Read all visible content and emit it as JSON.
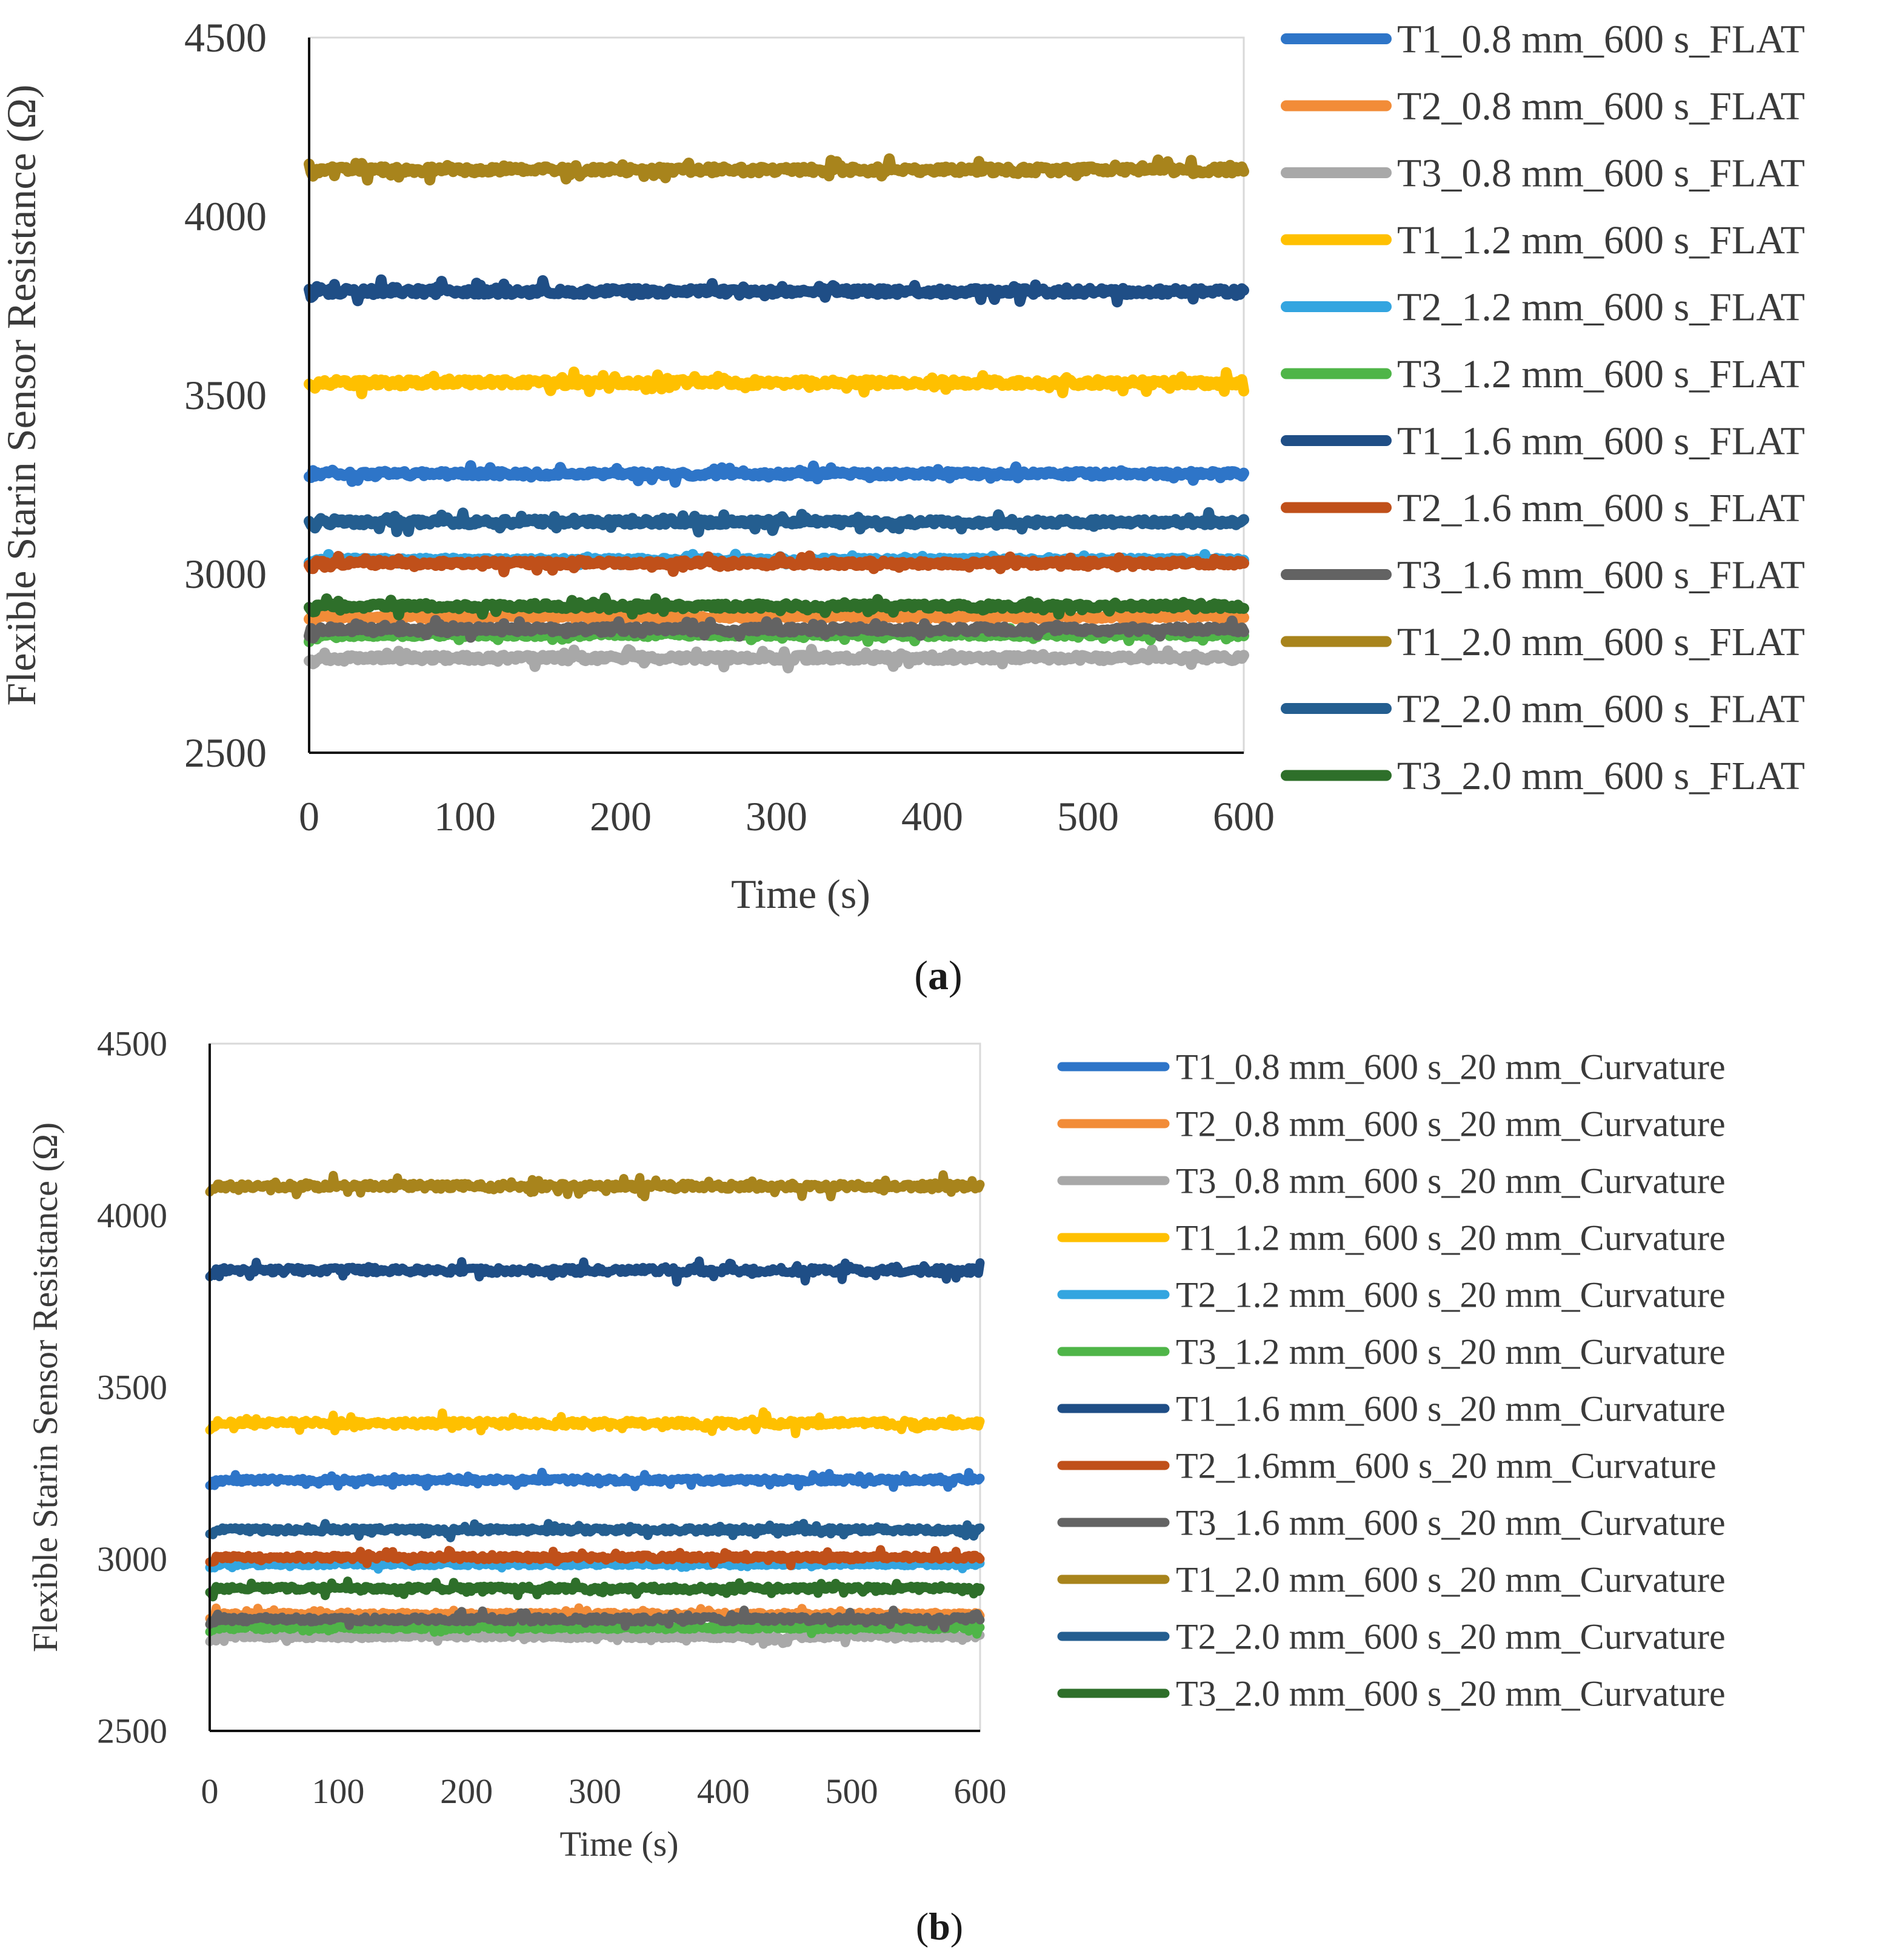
{
  "chart_data": [
    {
      "type": "line",
      "panel_label": "a",
      "title": "",
      "xlabel": "Time (s)",
      "ylabel": "Flexible Starin Sensor Resistance (Ω)",
      "xlim": [
        0,
        600
      ],
      "ylim": [
        2500,
        4500
      ],
      "xticks": [
        "0",
        "100",
        "200",
        "300",
        "400",
        "500",
        "600"
      ],
      "yticks": [
        "2500",
        "3000",
        "3500",
        "4000",
        "4500"
      ],
      "grid": false,
      "legend_position": "right",
      "series": [
        {
          "name": "T1_0.8 mm_600 s_FLAT",
          "color": "#2E75C8",
          "level": 3280,
          "noise": 12
        },
        {
          "name": "T2_0.8 mm_600 s_FLAT",
          "color": "#F28C38",
          "level": 2880,
          "noise": 10
        },
        {
          "name": "T3_0.8 mm_600 s_FLAT",
          "color": "#A8A8A8",
          "level": 2765,
          "noise": 14
        },
        {
          "name": "T1_1.2 mm_600 s_FLAT",
          "color": "#FFC000",
          "level": 3535,
          "noise": 16
        },
        {
          "name": "T2_1.2 mm_600 s_FLAT",
          "color": "#33A5E0",
          "level": 3040,
          "noise": 8
        },
        {
          "name": "T3_1.2 mm_600 s_FLAT",
          "color": "#4FB548",
          "level": 2830,
          "noise": 10
        },
        {
          "name": "T1_1.6 mm_600 s_FLAT",
          "color": "#1F4E86",
          "level": 3790,
          "noise": 16
        },
        {
          "name": "T2_1.6 mm_600 s_FLAT",
          "color": "#C0501A",
          "level": 3030,
          "noise": 12
        },
        {
          "name": "T3_1.6 mm_600 s_FLAT",
          "color": "#636363",
          "level": 2845,
          "noise": 14
        },
        {
          "name": "T1_2.0 mm_600 s_FLAT",
          "color": "#A8841C",
          "level": 4130,
          "noise": 16
        },
        {
          "name": "T2_2.0 mm_600 s_FLAT",
          "color": "#245E90",
          "level": 3145,
          "noise": 14
        },
        {
          "name": "T3_2.0 mm_600 s_FLAT",
          "color": "#2E6F2A",
          "level": 2910,
          "noise": 12
        }
      ]
    },
    {
      "type": "line",
      "panel_label": "b",
      "title": "",
      "xlabel": "Time (s)",
      "ylabel": "Flexible Starin Sensor Resistance (Ω)",
      "xlim": [
        0,
        600
      ],
      "ylim": [
        2500,
        4500
      ],
      "xticks": [
        "0",
        "100",
        "200",
        "300",
        "400",
        "500",
        "600"
      ],
      "yticks": [
        "2500",
        "3000",
        "3500",
        "4000",
        "4500"
      ],
      "grid": false,
      "legend_position": "right",
      "series": [
        {
          "name": "T1_0.8 mm_600 s_20 mm_Curvature",
          "color": "#2E75C8",
          "level": 3230,
          "noise": 12
        },
        {
          "name": "T2_0.8 mm_600 s_20 mm_Curvature",
          "color": "#F28C38",
          "level": 2840,
          "noise": 10
        },
        {
          "name": "T3_0.8 mm_600 s_20 mm_Curvature",
          "color": "#A8A8A8",
          "level": 2775,
          "noise": 12
        },
        {
          "name": "T1_1.2 mm_600 s_20 mm_Curvature",
          "color": "#FFC000",
          "level": 3395,
          "noise": 16
        },
        {
          "name": "T2_1.2 mm_600 s_20 mm_Curvature",
          "color": "#33A5E0",
          "level": 2985,
          "noise": 8
        },
        {
          "name": "T3_1.2 mm_600 s_20 mm_Curvature",
          "color": "#4FB548",
          "level": 2800,
          "noise": 10
        },
        {
          "name": "T1_1.6 mm_600 s_20 mm_Curvature",
          "color": "#1F4E86",
          "level": 3840,
          "noise": 16
        },
        {
          "name": "T2_1.6mm_600 s_20 mm_Curvature",
          "color": "#C0501A",
          "level": 3005,
          "noise": 12
        },
        {
          "name": "T3_1.6 mm_600 s_20 mm_Curvature",
          "color": "#636363",
          "level": 2825,
          "noise": 14
        },
        {
          "name": "T1_2.0 mm_600 s_20 mm_Curvature",
          "color": "#A8841C",
          "level": 4085,
          "noise": 16
        },
        {
          "name": "T2_2.0 mm_600 s_20 mm_Curvature",
          "color": "#245E90",
          "level": 3085,
          "noise": 12
        },
        {
          "name": "T3_2.0 mm_600 s_20 mm_Curvature",
          "color": "#2E6F2A",
          "level": 2915,
          "noise": 12
        }
      ]
    }
  ]
}
